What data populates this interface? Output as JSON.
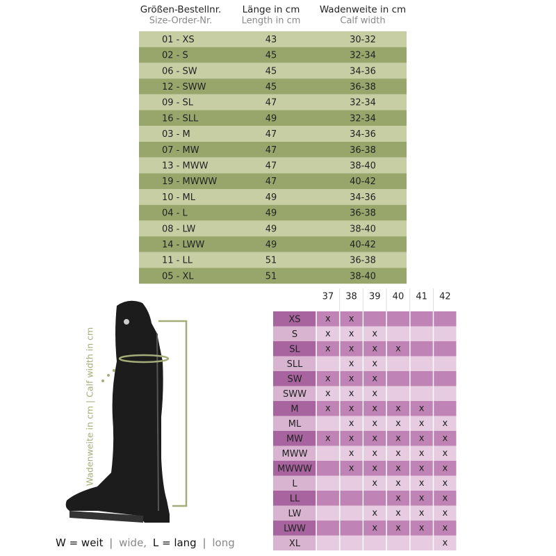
{
  "size_table": {
    "headers": [
      {
        "de": "Größen-Bestellnr.",
        "en": "Size-Order-Nr."
      },
      {
        "de": "Länge in cm",
        "en": "Length in cm"
      },
      {
        "de": "Wadenweite in cm",
        "en": "Calf width"
      }
    ],
    "rows": [
      [
        "01 - XS",
        "43",
        "30-32"
      ],
      [
        "02 - S",
        "45",
        "32-34"
      ],
      [
        "06 - SW",
        "45",
        "34-36"
      ],
      [
        "12 - SWW",
        "45",
        "36-38"
      ],
      [
        "09 - SL",
        "47",
        "32-34"
      ],
      [
        "16 - SLL",
        "49",
        "32-34"
      ],
      [
        "03 - M",
        "47",
        "34-36"
      ],
      [
        "07 - MW",
        "47",
        "36-38"
      ],
      [
        "13 - MWW",
        "47",
        "38-40"
      ],
      [
        "19 - MWWW",
        "47",
        "40-42"
      ],
      [
        "10 - ML",
        "49",
        "34-36"
      ],
      [
        "04 - L",
        "49",
        "36-38"
      ],
      [
        "08 - LW",
        "49",
        "38-40"
      ],
      [
        "14 - LWW",
        "49",
        "40-42"
      ],
      [
        "11 - LL",
        "51",
        "36-38"
      ],
      [
        "05 - XL",
        "51",
        "38-40"
      ]
    ]
  },
  "fit_table": {
    "columns": [
      "37",
      "38",
      "39",
      "40",
      "41",
      "42"
    ],
    "rows": [
      {
        "label": "XS",
        "cells": [
          "x",
          "x",
          null,
          null,
          null,
          null
        ]
      },
      {
        "label": "S",
        "cells": [
          "x",
          "x",
          "x",
          null,
          null,
          null
        ]
      },
      {
        "label": "SL",
        "cells": [
          "x",
          "x",
          "x",
          "x",
          null,
          null
        ]
      },
      {
        "label": "SLL",
        "cells": [
          null,
          "x",
          "x",
          null,
          null,
          null
        ]
      },
      {
        "label": "SW",
        "cells": [
          "x",
          "x",
          "x",
          null,
          null,
          null
        ]
      },
      {
        "label": "SWW",
        "cells": [
          "x",
          "x",
          "x",
          null,
          null,
          null
        ]
      },
      {
        "label": "M",
        "cells": [
          "x",
          "x",
          "x",
          "x",
          "x",
          null
        ]
      },
      {
        "label": "ML",
        "cells": [
          null,
          "x",
          "x",
          "x",
          "x",
          "x"
        ]
      },
      {
        "label": "MW",
        "cells": [
          "x",
          "x",
          "x",
          "x",
          "x",
          "x"
        ]
      },
      {
        "label": "MWW",
        "cells": [
          null,
          "x",
          "x",
          "x",
          "x",
          "x"
        ]
      },
      {
        "label": "MWWW",
        "cells": [
          null,
          "x",
          "x",
          "x",
          "x",
          "x"
        ]
      },
      {
        "label": "L",
        "cells": [
          null,
          null,
          "x",
          "x",
          "x",
          "x"
        ]
      },
      {
        "label": "LL",
        "cells": [
          null,
          null,
          null,
          "x",
          "x",
          "x"
        ]
      },
      {
        "label": "LW",
        "cells": [
          null,
          null,
          "x",
          "x",
          "x",
          "x"
        ]
      },
      {
        "label": "LWW",
        "cells": [
          null,
          null,
          "x",
          "x",
          "x",
          "x"
        ]
      },
      {
        "label": "XL",
        "cells": [
          null,
          null,
          null,
          null,
          null,
          "x"
        ]
      }
    ]
  },
  "boot": {
    "measure_label": "Wadenweite in cm | Calf width in cm"
  },
  "legend": {
    "parts": [
      "W = weit",
      "|",
      "wide,",
      "L = lang",
      "|",
      "long"
    ]
  }
}
